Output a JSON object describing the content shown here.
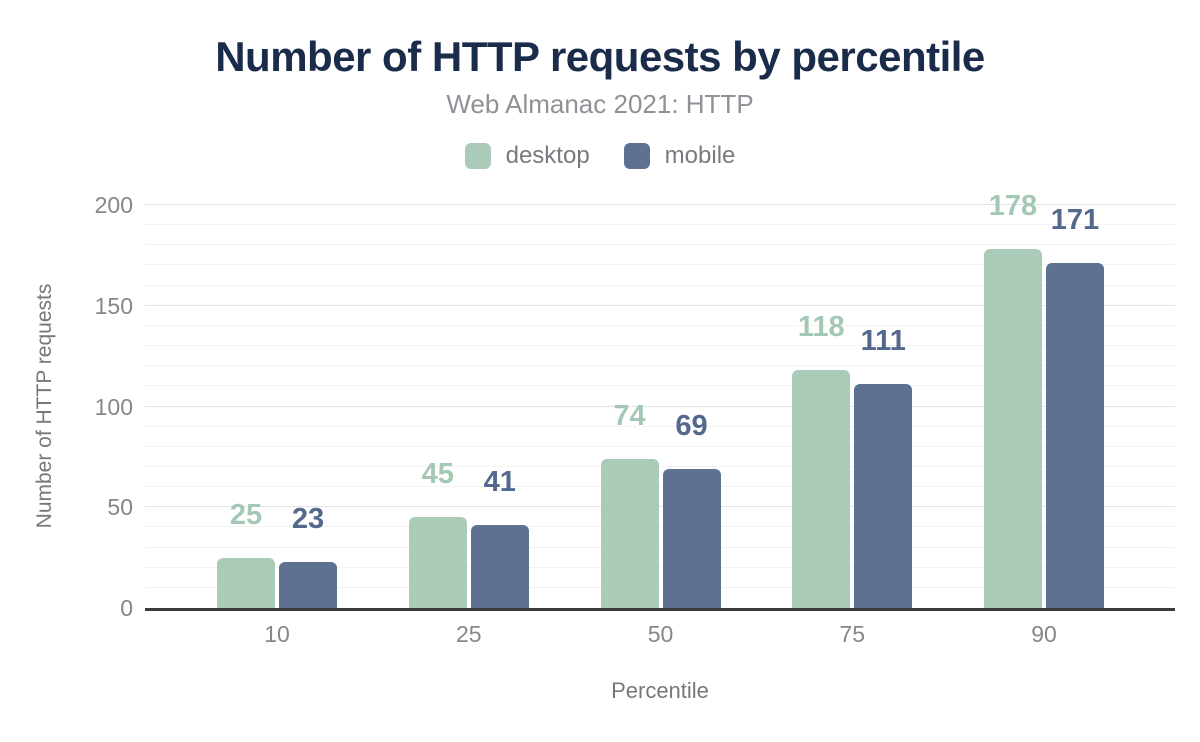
{
  "chart_data": {
    "type": "bar",
    "title": "Number of HTTP requests by percentile",
    "subtitle": "Web Almanac 2021: HTTP",
    "categories": [
      "10",
      "25",
      "50",
      "75",
      "90"
    ],
    "series": [
      {
        "name": "desktop",
        "color": "#a9cbb8",
        "label_color": "#a4c8b3",
        "values": [
          25,
          45,
          74,
          118,
          178
        ]
      },
      {
        "name": "mobile",
        "color": "#5e7191",
        "label_color": "#52688c",
        "values": [
          23,
          41,
          69,
          111,
          171
        ]
      }
    ],
    "xlabel": "Percentile",
    "ylabel": "Number of HTTP requests",
    "ylim": [
      0,
      200
    ],
    "yticks": [
      0,
      50,
      100,
      150,
      200
    ],
    "minor_grid_step": 10,
    "grid": true,
    "legend_position": "top",
    "value_labels_shown": true
  },
  "colors": {
    "title": "#1b2b4a",
    "baseline": "#3a3a3a",
    "grid_major": "#e3e3e3",
    "grid_minor": "#f3f3f3"
  }
}
